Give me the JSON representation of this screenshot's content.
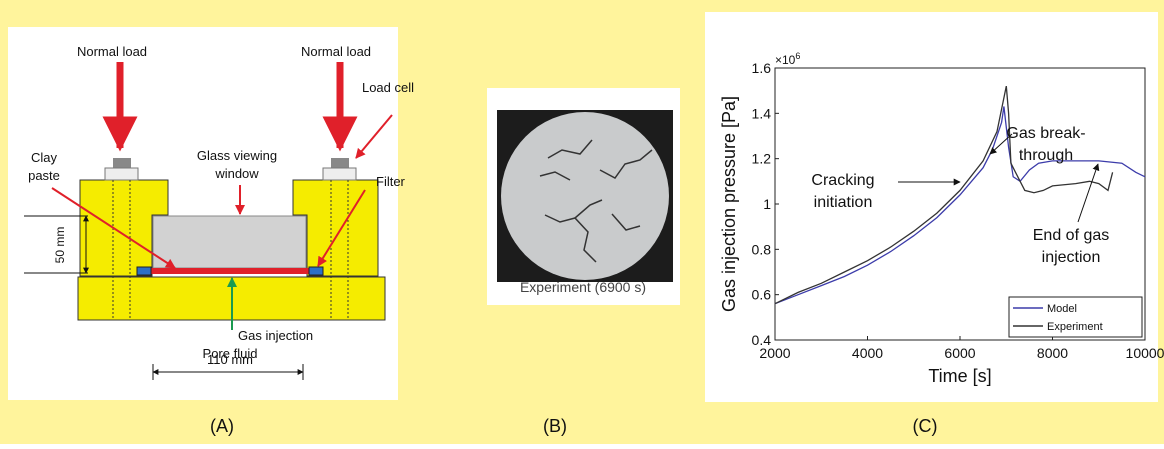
{
  "panel_a": {
    "label": "(A)",
    "texts": {
      "normal_load_left": "Normal load",
      "normal_load_right": "Normal load",
      "load_cell": "Load cell",
      "glass_window": [
        "Glass viewing",
        "window"
      ],
      "clay_paste": [
        "Clay",
        "paste"
      ],
      "filter": "Filter",
      "height": "50 mm",
      "gas_injection": "Gas injection",
      "pore_fluid": "Pore fluid",
      "width": "110 mm"
    }
  },
  "panel_b": {
    "label": "(B)",
    "caption": "Experiment (6900 s)"
  },
  "panel_c": {
    "label": "(C)"
  },
  "chart_data": {
    "type": "line",
    "xlabel": "Time [s]",
    "ylabel": "Gas injection pressure [Pa]",
    "multiplier": {
      "base": "×10",
      "exponent": "6"
    },
    "xlim": [
      2000,
      10000
    ],
    "xticks": [
      2000,
      4000,
      6000,
      8000,
      10000
    ],
    "ylim": [
      0.4,
      1.6
    ],
    "yticks": [
      0.4,
      0.6,
      0.8,
      {
        "value": 1,
        "label": "1"
      },
      1.2,
      1.4,
      1.6
    ],
    "grid": false,
    "legend": "lower right",
    "series": [
      {
        "name": "Model",
        "color": "#3c3caa",
        "x": [
          2000,
          2500,
          3000,
          3500,
          4000,
          4500,
          5000,
          5500,
          6000,
          6500,
          6700,
          6900,
          6950,
          7050,
          7150,
          7300,
          7500,
          7700,
          8000,
          9000,
          9500,
          9800,
          10000
        ],
        "values": [
          0.56,
          0.6,
          0.64,
          0.68,
          0.73,
          0.79,
          0.86,
          0.94,
          1.04,
          1.16,
          1.24,
          1.36,
          1.43,
          1.25,
          1.12,
          1.1,
          1.15,
          1.18,
          1.19,
          1.19,
          1.18,
          1.14,
          1.12
        ]
      },
      {
        "name": "Experiment",
        "color": "#333333",
        "x": [
          2000,
          2500,
          3000,
          3500,
          4000,
          4500,
          5000,
          5500,
          6000,
          6500,
          6800,
          7000,
          7050,
          7100,
          7200,
          7400,
          7600,
          7800,
          8000,
          8500,
          8800,
          9000,
          9200,
          9300
        ],
        "values": [
          0.56,
          0.61,
          0.65,
          0.7,
          0.75,
          0.81,
          0.88,
          0.96,
          1.06,
          1.19,
          1.32,
          1.52,
          1.4,
          1.18,
          1.14,
          1.06,
          1.05,
          1.06,
          1.08,
          1.09,
          1.1,
          1.09,
          1.06,
          1.14
        ]
      }
    ],
    "annotations": {
      "cracking": [
        "Cracking",
        "initiation"
      ],
      "breakthrough": [
        "Gas break-",
        "through"
      ],
      "end": [
        "End of gas",
        "injection"
      ]
    }
  }
}
